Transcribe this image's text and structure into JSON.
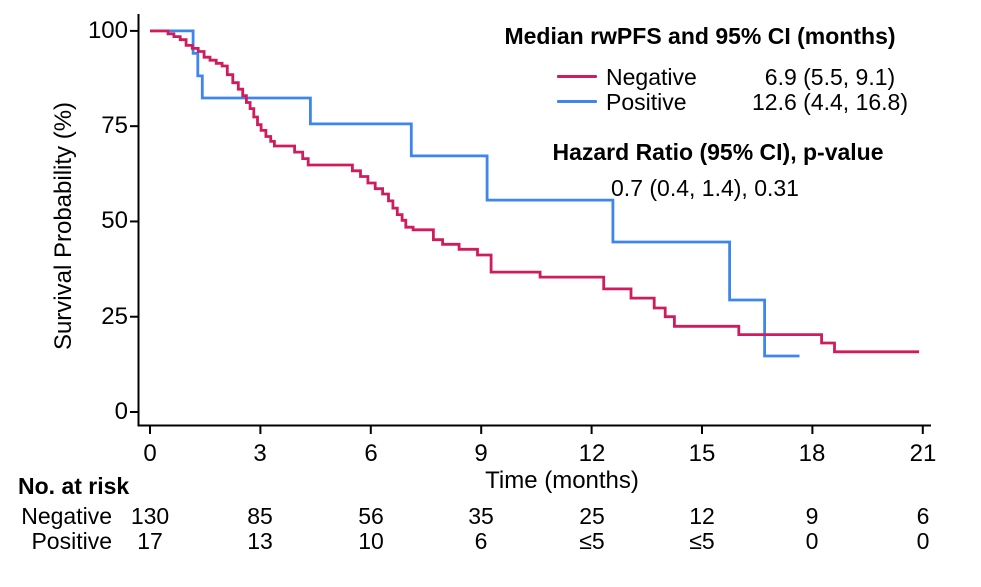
{
  "figure": {
    "y_axis": {
      "title": "Survival Probability (%)",
      "ticks": [
        "100",
        "75",
        "50",
        "25",
        "0"
      ],
      "tick_values": [
        100,
        75,
        50,
        25,
        0
      ]
    },
    "x_axis": {
      "title": "Time (months)",
      "ticks": [
        "0",
        "3",
        "6",
        "9",
        "12",
        "15",
        "18",
        "21"
      ],
      "tick_values": [
        0,
        3,
        6,
        9,
        12,
        15,
        18,
        21
      ]
    },
    "legend": {
      "title": "Median rwPFS and 95% CI (months)",
      "entries": [
        {
          "label": "Negative",
          "value": "6.9 (5.5, 9.1)",
          "color": "#D01C5C"
        },
        {
          "label": "Positive",
          "value": "12.6 (4.4, 16.8)",
          "color": "#3E86EB"
        }
      ]
    },
    "hazard": {
      "title": "Hazard Ratio (95% CI), p-value",
      "value": "0.7 (0.4, 1.4), 0.31"
    }
  },
  "risk_table": {
    "header": "No. at risk",
    "rows": [
      {
        "label": "Negative",
        "counts": [
          "130",
          "85",
          "56",
          "35",
          "25",
          "12",
          "9",
          "6"
        ]
      },
      {
        "label": "Positive",
        "counts": [
          "17",
          "13",
          "10",
          "6",
          "≤5",
          "≤5",
          "0",
          "0"
        ]
      }
    ]
  },
  "chart_data": {
    "type": "line",
    "subtype": "kaplan-meier-step",
    "title": "",
    "xlabel": "Time (months)",
    "ylabel": "Survival Probability (%)",
    "xlim": [
      0,
      21
    ],
    "ylim": [
      0,
      100
    ],
    "grid": false,
    "legend_position": "top-right",
    "series": [
      {
        "name": "Negative",
        "color": "#D01C5C",
        "median_ci": "6.9 (5.5, 9.1)",
        "end_time": 20.9,
        "steps": [
          [
            0,
            100
          ],
          [
            0.49,
            99.2
          ],
          [
            0.65,
            98.5
          ],
          [
            0.82,
            97.7
          ],
          [
            0.98,
            96.2
          ],
          [
            1.15,
            95.4
          ],
          [
            1.31,
            94.6
          ],
          [
            1.47,
            93.1
          ],
          [
            1.63,
            92.3
          ],
          [
            1.8,
            91.5
          ],
          [
            1.96,
            90.8
          ],
          [
            2.1,
            88.5
          ],
          [
            2.25,
            86.4
          ],
          [
            2.4,
            84.7
          ],
          [
            2.52,
            83.0
          ],
          [
            2.62,
            81.2
          ],
          [
            2.72,
            79.6
          ],
          [
            2.82,
            77.4
          ],
          [
            2.92,
            75.4
          ],
          [
            3.02,
            73.9
          ],
          [
            3.15,
            72.3
          ],
          [
            3.28,
            71.0
          ],
          [
            3.38,
            69.8
          ],
          [
            3.93,
            68.2
          ],
          [
            4.15,
            66.5
          ],
          [
            4.3,
            64.8
          ],
          [
            5.5,
            63.3
          ],
          [
            5.72,
            61.8
          ],
          [
            5.92,
            60.1
          ],
          [
            6.12,
            58.6
          ],
          [
            6.32,
            57.2
          ],
          [
            6.48,
            55.4
          ],
          [
            6.6,
            53.5
          ],
          [
            6.72,
            51.8
          ],
          [
            6.85,
            50.3
          ],
          [
            6.95,
            48.5
          ],
          [
            7.15,
            47.8
          ],
          [
            7.7,
            45.2
          ],
          [
            7.95,
            44.0
          ],
          [
            8.4,
            42.7
          ],
          [
            8.9,
            41.2
          ],
          [
            9.27,
            36.7
          ],
          [
            10.6,
            35.4
          ],
          [
            12.33,
            32.3
          ],
          [
            13.07,
            29.9
          ],
          [
            13.7,
            27.3
          ],
          [
            14.0,
            25.0
          ],
          [
            14.25,
            22.5
          ],
          [
            16.0,
            20.3
          ],
          [
            18.25,
            18.1
          ],
          [
            18.6,
            15.8
          ]
        ]
      },
      {
        "name": "Positive",
        "color": "#3E86EB",
        "median_ci": "12.6 (4.4, 16.8)",
        "end_time": 17.65,
        "steps": [
          [
            0,
            100
          ],
          [
            1.17,
            94.1
          ],
          [
            1.3,
            88.2
          ],
          [
            1.42,
            82.4
          ],
          [
            4.36,
            75.6
          ],
          [
            7.1,
            67.2
          ],
          [
            9.16,
            55.6
          ],
          [
            12.58,
            44.6
          ],
          [
            15.75,
            29.4
          ],
          [
            16.7,
            14.7
          ]
        ]
      }
    ],
    "annotations": [
      "Median rwPFS and 95% CI (months)",
      "Hazard Ratio (95% CI), p-value",
      "0.7 (0.4, 1.4), 0.31"
    ]
  }
}
